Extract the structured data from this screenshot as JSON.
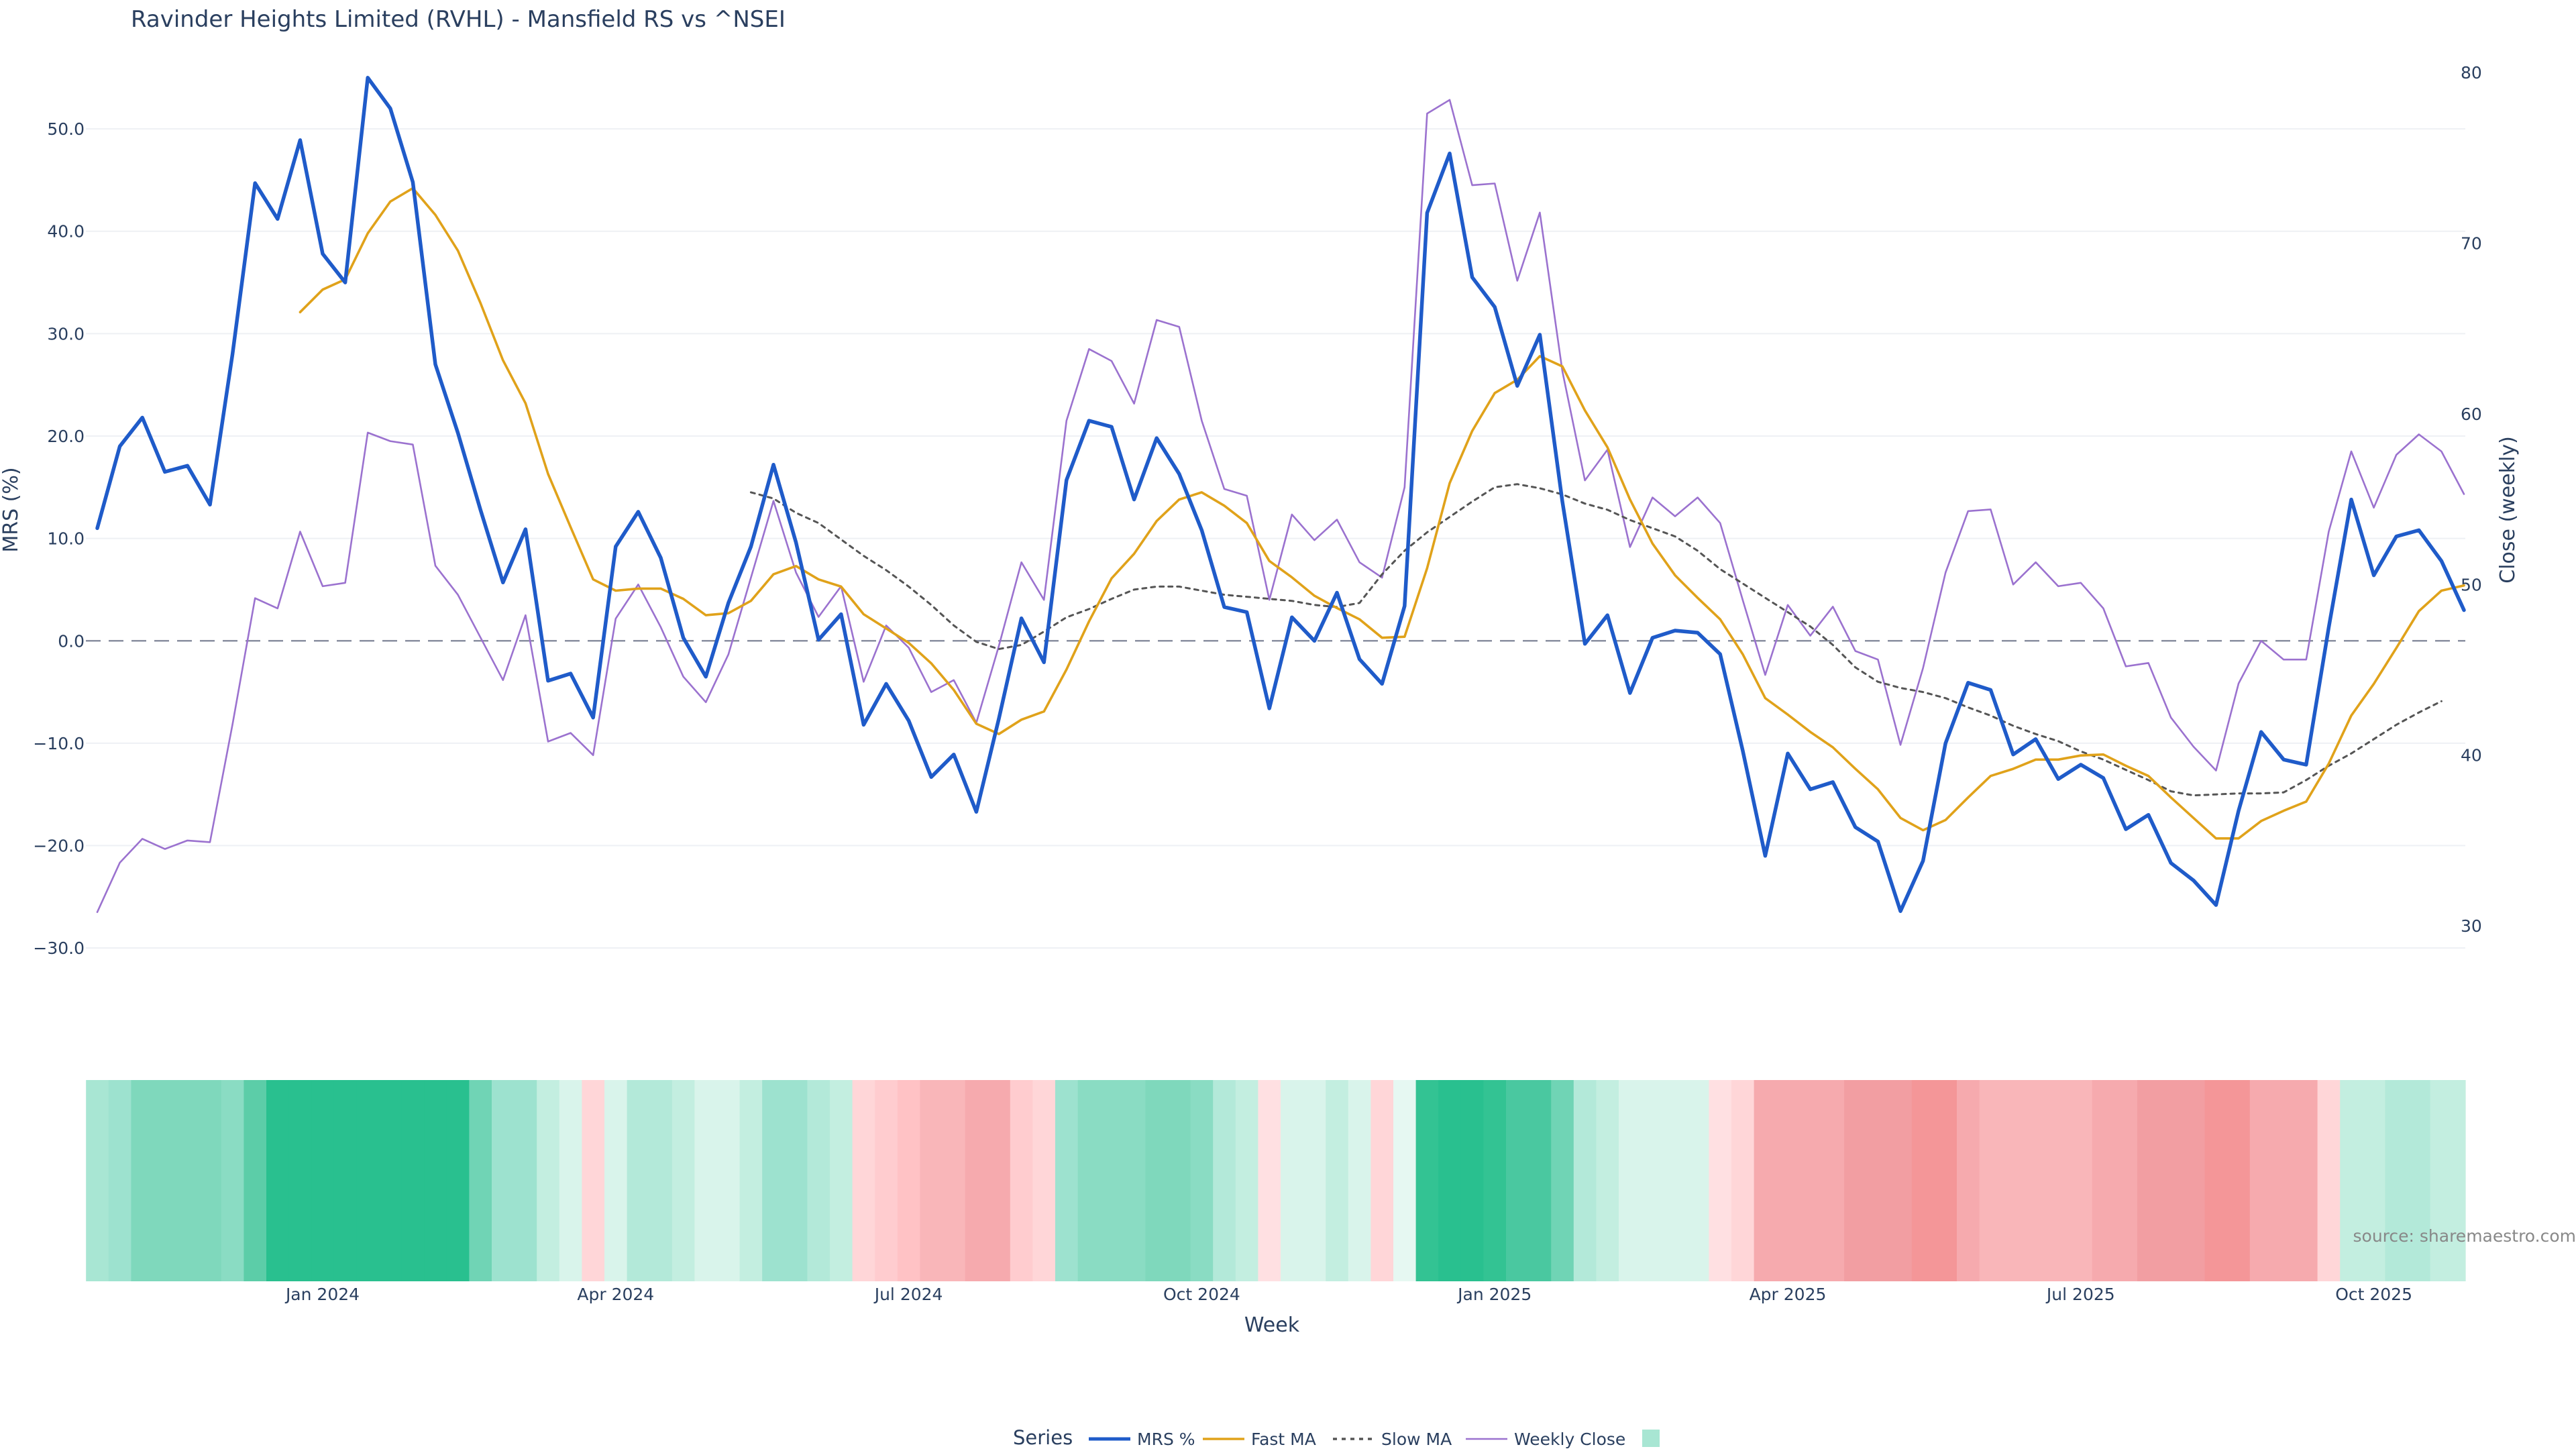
{
  "chart_data": {
    "type": "line",
    "title": "Ravinder Heights Limited (RVHL) - Mansfield RS vs ^NSEI",
    "xlabel": "Week",
    "ylabel_left": "MRS (%)",
    "ylabel_right": "Close (weekly)",
    "y_left_range": [
      -37,
      58
    ],
    "y_right_range": [
      24.5,
      81.5
    ],
    "y_left_ticks": [
      50,
      40,
      30,
      20,
      10,
      0,
      -10,
      -20,
      -30
    ],
    "y_left_tick_labels": [
      "50.0",
      "40.0",
      "30.0",
      "20.0",
      "10.0",
      "0.0",
      "−10.0",
      "−20.0",
      "−30.0"
    ],
    "y_right_ticks": [
      80,
      70,
      60,
      50,
      40,
      30
    ],
    "y_right_tick_labels": [
      "80",
      "70",
      "60",
      "50",
      "40",
      "30"
    ],
    "x_ticks": [
      {
        "label": "Jan 2024",
        "week": 10
      },
      {
        "label": "Apr 2024",
        "week": 23
      },
      {
        "label": "Jul 2024",
        "week": 36
      },
      {
        "label": "Oct 2024",
        "week": 49
      },
      {
        "label": "Jan 2025",
        "week": 62
      },
      {
        "label": "Apr 2025",
        "week": 75
      },
      {
        "label": "Jul 2025",
        "week": 88
      },
      {
        "label": "Oct 2025",
        "week": 101
      }
    ],
    "zero_line": 0,
    "series": [
      {
        "name": "MRS %",
        "axis": "left",
        "color": "#1f5bc9",
        "start_week": 0,
        "values": [
          11,
          19,
          21.8,
          16.5,
          17.1,
          13.3,
          28,
          44.7,
          41.2,
          48.9,
          37.8,
          35,
          55,
          52,
          44.8,
          27,
          20.3,
          12.8,
          5.7,
          10.9,
          -3.9,
          -3.2,
          -7.5,
          9.2,
          12.6,
          8.1,
          0.3,
          -3.5,
          3.7,
          9.2,
          17.2,
          9.6,
          0.1,
          2.6,
          -8.2,
          -4.2,
          -7.8,
          -13.3,
          -11.1,
          -16.7,
          -7.6,
          2.2,
          -2.1,
          15.7,
          21.5,
          20.9,
          13.8,
          19.8,
          16.3,
          10.8,
          3.3,
          2.8,
          -6.6,
          2.3,
          0,
          4.7,
          -1.8,
          -4.2,
          3.4,
          41.8,
          47.6,
          35.5,
          32.6,
          24.9,
          29.9,
          13.6,
          -0.3,
          2.5,
          -5.1,
          0.3,
          1,
          0.8,
          -1.3,
          -10.7,
          -21,
          -11,
          -14.5,
          -13.8,
          -18.2,
          -19.6,
          -26.4,
          -21.5,
          -10,
          -4.1,
          -4.8,
          -11.1,
          -9.6,
          -13.5,
          -12.1,
          -13.4,
          -18.4,
          -17,
          -21.7,
          -23.4,
          -25.8,
          -16.6,
          -8.9,
          -11.6,
          -12.1,
          1.3,
          13.8,
          6.4,
          10.2,
          10.8,
          7.8,
          3
        ]
      },
      {
        "name": "Fast MA",
        "axis": "left",
        "color": "#e0a21a",
        "start_week": 9,
        "values": [
          32.1,
          34.3,
          35.3,
          39.8,
          42.9,
          44.2,
          41.6,
          38.1,
          33,
          27.4,
          23.2,
          16.3,
          11.1,
          6,
          4.9,
          5.1,
          5.1,
          4.1,
          2.5,
          2.7,
          3.9,
          6.5,
          7.3,
          6,
          5.3,
          2.6,
          1.2,
          -0.2,
          -2.2,
          -4.8,
          -8.1,
          -9.1,
          -7.7,
          -6.9,
          -2.8,
          1.9,
          6.1,
          8.5,
          11.7,
          13.8,
          14.5,
          13.2,
          11.5,
          7.8,
          6.2,
          4.4,
          3.2,
          2.1,
          0.3,
          0.4,
          7.1,
          15.4,
          20.5,
          24.2,
          25.5,
          27.8,
          26.8,
          22.5,
          18.9,
          13.8,
          9.5,
          6.4,
          4.2,
          2.1,
          -1.3,
          -5.6,
          -7.2,
          -8.9,
          -10.4,
          -12.5,
          -14.5,
          -17.3,
          -18.5,
          -17.5,
          -15.3,
          -13.2,
          -12.5,
          -11.6,
          -11.6,
          -11.2,
          -11.1,
          -12.2,
          -13.2,
          -15.3,
          -17.3,
          -19.3,
          -19.3,
          -17.6,
          -16.6,
          -15.7,
          -12,
          -7.3,
          -4.2,
          -0.7,
          2.9,
          4.9,
          5.4
        ]
      },
      {
        "name": "Slow MA",
        "axis": "left",
        "color": "#555555",
        "start_week": 29,
        "values": [
          14.5,
          13.9,
          12.5,
          11.5,
          9.9,
          8.3,
          6.9,
          5.3,
          3.5,
          1.5,
          -0.1,
          -0.8,
          -0.4,
          0.9,
          2.3,
          3.1,
          4.1,
          5,
          5.3,
          5.3,
          4.9,
          4.5,
          4.3,
          4.1,
          3.9,
          3.5,
          3.3,
          3.7,
          6.5,
          8.8,
          10.6,
          12.1,
          13.6,
          15,
          15.3,
          14.9,
          14.3,
          13.4,
          12.8,
          11.8,
          11,
          10.2,
          8.8,
          7,
          5.6,
          4.2,
          2.8,
          1.4,
          -0.4,
          -2.6,
          -4,
          -4.6,
          -5,
          -5.6,
          -6.5,
          -7.3,
          -8.3,
          -9.1,
          -9.8,
          -10.8,
          -11.6,
          -12.6,
          -13.6,
          -14.7,
          -15.1,
          -15,
          -14.9,
          -14.9,
          -14.8,
          -13.6,
          -12.2,
          -11,
          -9.6,
          -8.2,
          -7,
          -5.9
        ]
      },
      {
        "name": "Weekly Close",
        "axis": "right",
        "color": "#9b72cf",
        "start_week": 0,
        "values": [
          30.8,
          33.7,
          35.1,
          34.5,
          35,
          34.9,
          41.8,
          49.2,
          48.6,
          53.1,
          49.9,
          50.1,
          58.9,
          58.4,
          58.2,
          51.1,
          49.4,
          46.9,
          44.4,
          48.2,
          40.8,
          41.3,
          40,
          48,
          50,
          47.5,
          44.6,
          43.1,
          45.9,
          50.4,
          54.9,
          50.7,
          48.1,
          49.9,
          44.3,
          47.6,
          46.3,
          43.7,
          44.4,
          41.9,
          46.4,
          51.3,
          49.1,
          59.6,
          63.8,
          63.1,
          60.6,
          65.5,
          65.1,
          59.6,
          55.6,
          55.2,
          49.1,
          54.1,
          52.6,
          53.8,
          51.3,
          50.4,
          55.7,
          77.6,
          78.4,
          73.4,
          73.5,
          67.8,
          71.8,
          62.5,
          56.1,
          57.9,
          52.2,
          55.1,
          54,
          55.1,
          53.6,
          49.1,
          44.7,
          48.8,
          47,
          48.7,
          46.1,
          45.6,
          40.6,
          45.1,
          50.7,
          54.3,
          54.4,
          50,
          51.3,
          49.9,
          50.1,
          48.6,
          45.2,
          45.4,
          42.2,
          40.5,
          39.1,
          44.2,
          46.7,
          45.6,
          45.6,
          53.1,
          57.8,
          54.5,
          57.6,
          58.8,
          57.8,
          55.3
        ]
      }
    ],
    "heatmap_band": {
      "start_week": -0.5,
      "colors": [
        "#a8e6d3",
        "#9de2cf",
        "#7fd8bc",
        "#7fd8bc",
        "#7fd8bc",
        "#7fd8bc",
        "#8adcc3",
        "#5ccda8",
        "#29c08f",
        "#29c08f",
        "#29c08f",
        "#29c08f",
        "#29c08f",
        "#29c08f",
        "#29c08f",
        "#29c08f",
        "#29c08f",
        "#70d4b5",
        "#9de2cf",
        "#9de2cf",
        "#c3eee0",
        "#d9f4eb",
        "#ffd6d8",
        "#d9f4eb",
        "#b3e9d9",
        "#b3e9d9",
        "#c3eee0",
        "#d9f4eb",
        "#d9f4eb",
        "#c3eee0",
        "#9de2cf",
        "#9de2cf",
        "#b3e9d9",
        "#c3eee0",
        "#ffd6d8",
        "#ffcccf",
        "#ffc2c5",
        "#f9b6b9",
        "#f9b6b9",
        "#f6aaae",
        "#f6aaae",
        "#ffcccf",
        "#ffd6d8",
        "#9de2cf",
        "#8adcc3",
        "#8adcc3",
        "#8adcc3",
        "#7fd8bc",
        "#7fd8bc",
        "#8adcc3",
        "#b3e9d9",
        "#c3eee0",
        "#ffe0e2",
        "#d9f4eb",
        "#d9f4eb",
        "#c3eee0",
        "#d9f4eb",
        "#ffd6d8",
        "#e6f8f2",
        "#33c393",
        "#29c08f",
        "#29c08f",
        "#33c393",
        "#4ac8a0",
        "#4ac8a0",
        "#70d4b5",
        "#b3e9d9",
        "#c3eee0",
        "#d9f4eb",
        "#d9f4eb",
        "#d9f4eb",
        "#d9f4eb",
        "#ffe0e2",
        "#ffd6d8",
        "#f6aaae",
        "#f6aaae",
        "#f6aaae",
        "#f6aaae",
        "#f29ea2",
        "#f29ea2",
        "#f29ea2",
        "#f49698",
        "#f49698",
        "#f6aaae",
        "#f9b6b9",
        "#f9b6b9",
        "#f9b6b9",
        "#f9b6b9",
        "#f9b6b9",
        "#f6aaae",
        "#f6aaae",
        "#f29ea2",
        "#f29ea2",
        "#f29ea2",
        "#f49698",
        "#f49698",
        "#f6aaae",
        "#f6aaae",
        "#f6aaae",
        "#ffd6d8",
        "#c3eee0",
        "#c3eee0",
        "#b3e9d9",
        "#b3e9d9",
        "#c3eee0",
        "#c3eee0"
      ]
    },
    "legend": {
      "placement": "bottom-center",
      "title": "Series",
      "items": [
        {
          "label": "MRS %",
          "color": "#1f5bc9",
          "style": "solid-thick"
        },
        {
          "label": "Fast MA",
          "color": "#e0a21a",
          "style": "solid"
        },
        {
          "label": "Slow MA",
          "color": "#555555",
          "style": "dotted"
        },
        {
          "label": "Weekly Close",
          "color": "#9b72cf",
          "style": "solid-thin"
        },
        {
          "label": "",
          "color": "#a8e6d3",
          "style": "swatch"
        }
      ]
    },
    "source": "source: sharemaestro.com",
    "grid": true
  }
}
